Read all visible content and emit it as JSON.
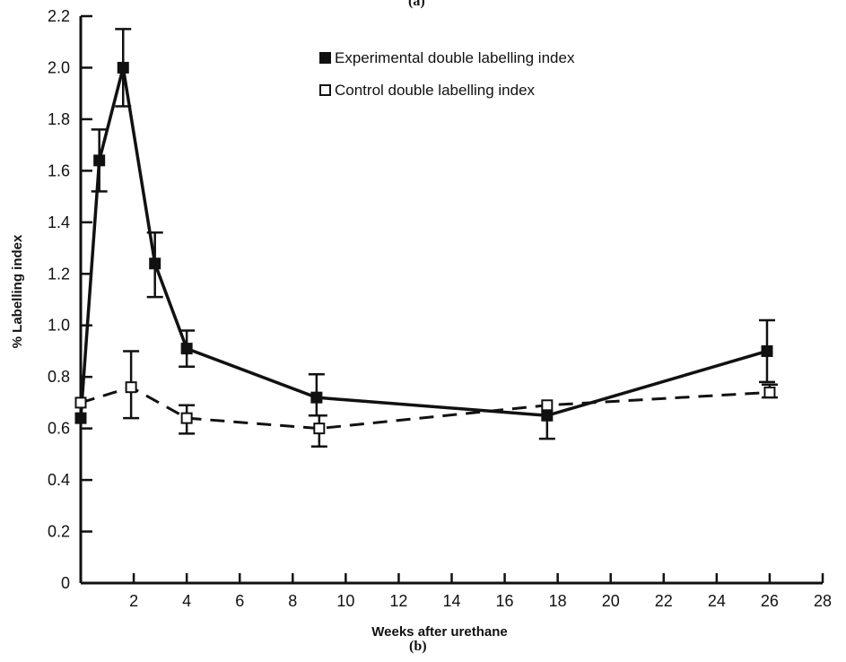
{
  "captions": {
    "top": "(a)",
    "bottom": "(b)"
  },
  "chart_data": {
    "type": "line",
    "xlabel": "Weeks after urethane",
    "ylabel": "% Labelling index",
    "xlim": [
      0,
      28
    ],
    "ylim": [
      0,
      2.2
    ],
    "x_ticks": [
      {
        "value": 2,
        "label": "2"
      },
      {
        "value": 4,
        "label": "4"
      },
      {
        "value": 6,
        "label": "6"
      },
      {
        "value": 8,
        "label": "8"
      },
      {
        "value": 10,
        "label": "10"
      },
      {
        "value": 12,
        "label": "12"
      },
      {
        "value": 14,
        "label": "14"
      },
      {
        "value": 16,
        "label": "16"
      },
      {
        "value": 18,
        "label": "18"
      },
      {
        "value": 20,
        "label": "20"
      },
      {
        "value": 22,
        "label": "22"
      },
      {
        "value": 24,
        "label": "24"
      },
      {
        "value": 26,
        "label": "26"
      },
      {
        "value": 28,
        "label": "28"
      }
    ],
    "y_ticks": [
      {
        "value": 0,
        "label": "0"
      },
      {
        "value": 0.2,
        "label": "0.2"
      },
      {
        "value": 0.4,
        "label": "0.4"
      },
      {
        "value": 0.6,
        "label": "0.6"
      },
      {
        "value": 0.8,
        "label": "0.8"
      },
      {
        "value": 1.0,
        "label": "1.0"
      },
      {
        "value": 1.2,
        "label": "1.2"
      },
      {
        "value": 1.4,
        "label": "1.4"
      },
      {
        "value": 1.6,
        "label": "1.6"
      },
      {
        "value": 1.8,
        "label": "1.8"
      },
      {
        "value": 2.0,
        "label": "2.0"
      },
      {
        "value": 2.2,
        "label": "2.2"
      }
    ],
    "grid": false,
    "legend_position": "top-right",
    "series": [
      {
        "name": "Experimental double labelling index",
        "marker": "filled-square",
        "line_style": "solid",
        "color": "#111111",
        "points": [
          {
            "x": 0,
            "y": 0.64,
            "err_low": null,
            "err_high": null
          },
          {
            "x": 0.7,
            "y": 1.64,
            "err_low": 1.52,
            "err_high": 1.76
          },
          {
            "x": 1.6,
            "y": 2.0,
            "err_low": 1.85,
            "err_high": 2.15
          },
          {
            "x": 2.8,
            "y": 1.24,
            "err_low": 1.11,
            "err_high": 1.36
          },
          {
            "x": 4.0,
            "y": 0.91,
            "err_low": 0.84,
            "err_high": 0.98
          },
          {
            "x": 8.9,
            "y": 0.72,
            "err_low": 0.65,
            "err_high": 0.81
          },
          {
            "x": 17.6,
            "y": 0.65,
            "err_low": 0.56,
            "err_high": null
          },
          {
            "x": 25.9,
            "y": 0.9,
            "err_low": 0.78,
            "err_high": 1.02
          }
        ]
      },
      {
        "name": "Control double labelling index",
        "marker": "open-square",
        "line_style": "dashed",
        "color": "#111111",
        "points": [
          {
            "x": 0,
            "y": 0.7,
            "err_low": null,
            "err_high": null
          },
          {
            "x": 1.9,
            "y": 0.76,
            "err_low": 0.64,
            "err_high": 0.9
          },
          {
            "x": 4.0,
            "y": 0.64,
            "err_low": 0.58,
            "err_high": 0.69
          },
          {
            "x": 9.0,
            "y": 0.6,
            "err_low": 0.53,
            "err_high": 0.65
          },
          {
            "x": 17.6,
            "y": 0.69,
            "err_low": null,
            "err_high": null
          },
          {
            "x": 26.0,
            "y": 0.74,
            "err_low": 0.72,
            "err_high": 0.77
          }
        ]
      }
    ]
  }
}
